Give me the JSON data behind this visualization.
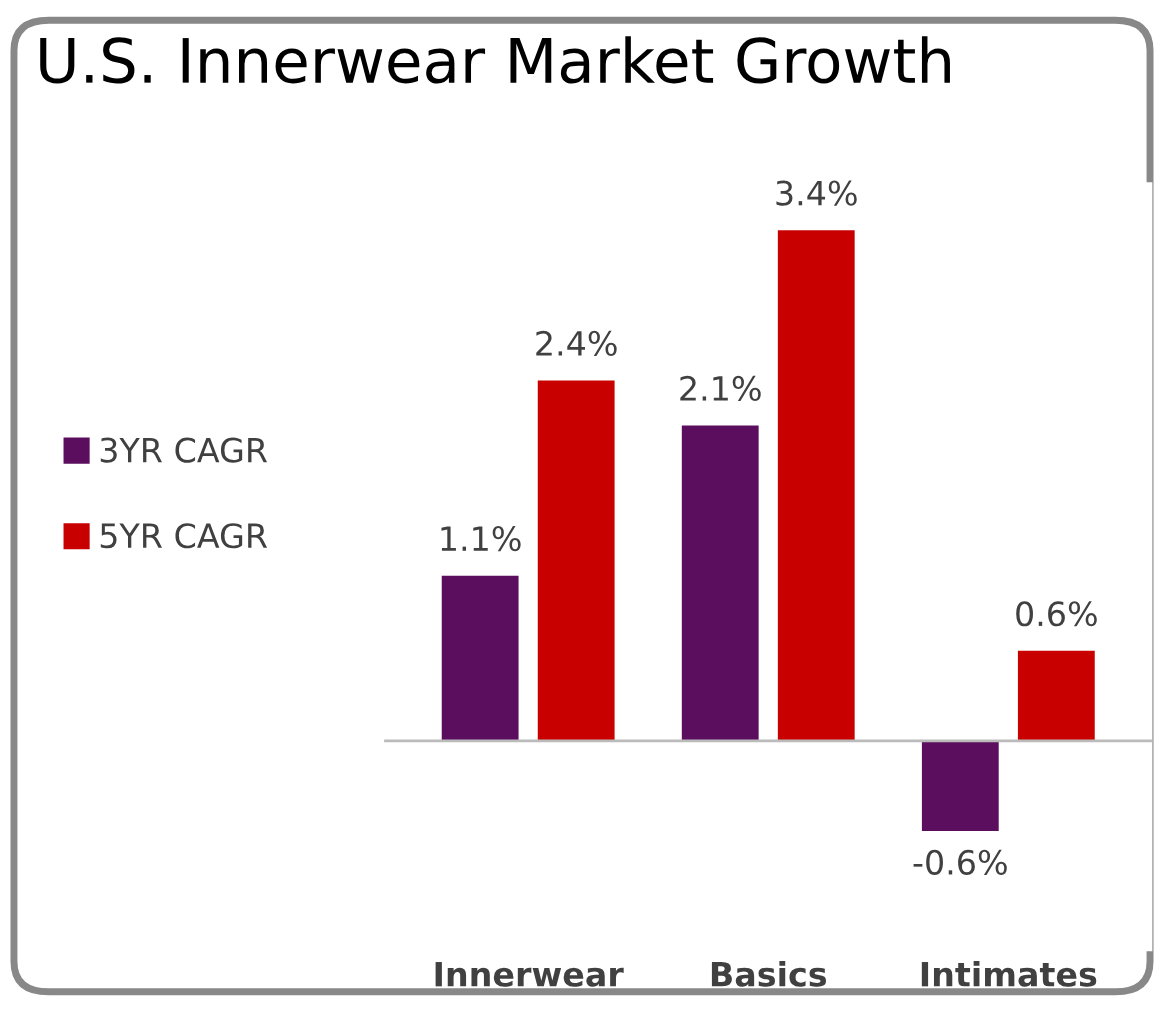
{
  "chart_data": {
    "type": "bar",
    "title": "U.S. Innerwear Market Growth",
    "categories": [
      "Innerwear",
      "Basics",
      "Intimates"
    ],
    "series": [
      {
        "name": "3YR CAGR",
        "color": "#5b0e5e",
        "values": [
          1.1,
          2.1,
          -0.6
        ],
        "value_labels": [
          "1.1%",
          "2.1%",
          "-0.6%"
        ]
      },
      {
        "name": "5YR CAGR",
        "color": "#c80000",
        "values": [
          2.4,
          3.4,
          0.6
        ],
        "value_labels": [
          "2.4%",
          "3.4%",
          "0.6%"
        ]
      }
    ],
    "legend": "left",
    "grid": false,
    "tick_labels": "x"
  }
}
